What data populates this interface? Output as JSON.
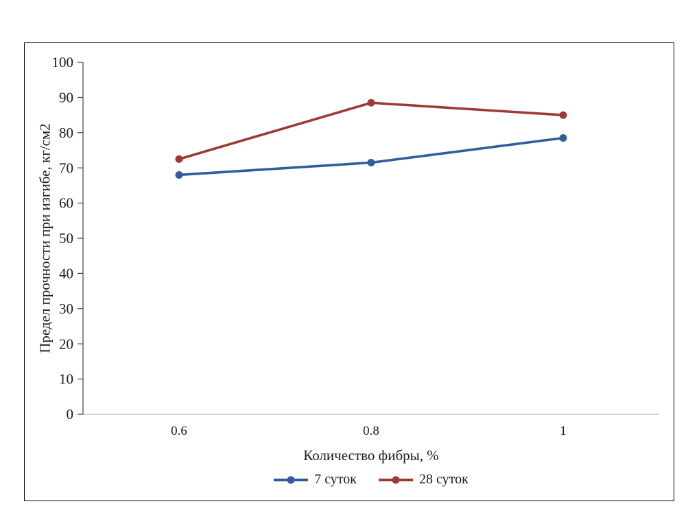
{
  "page": {
    "background": "#ffffff"
  },
  "chart_data": {
    "type": "line",
    "title": "",
    "xlabel": "Количество фибры, %",
    "ylabel": "Предел прочности при изгибе, кг/см2",
    "categories": [
      "0.6",
      "0.8",
      "1"
    ],
    "series": [
      {
        "name": "7 суток",
        "color": "#2f5d9e",
        "values": [
          68,
          71.5,
          78.5
        ]
      },
      {
        "name": "28 суток",
        "color": "#9e3a33",
        "values": [
          72.5,
          88.5,
          85
        ]
      }
    ],
    "ylim": [
      0,
      100
    ],
    "yticks": [
      0,
      10,
      20,
      30,
      40,
      50,
      60,
      70,
      80,
      90,
      100
    ],
    "grid": false,
    "legend_position": "bottom",
    "axis_color": "#404040",
    "baseline_color": "#bfbfbf"
  }
}
